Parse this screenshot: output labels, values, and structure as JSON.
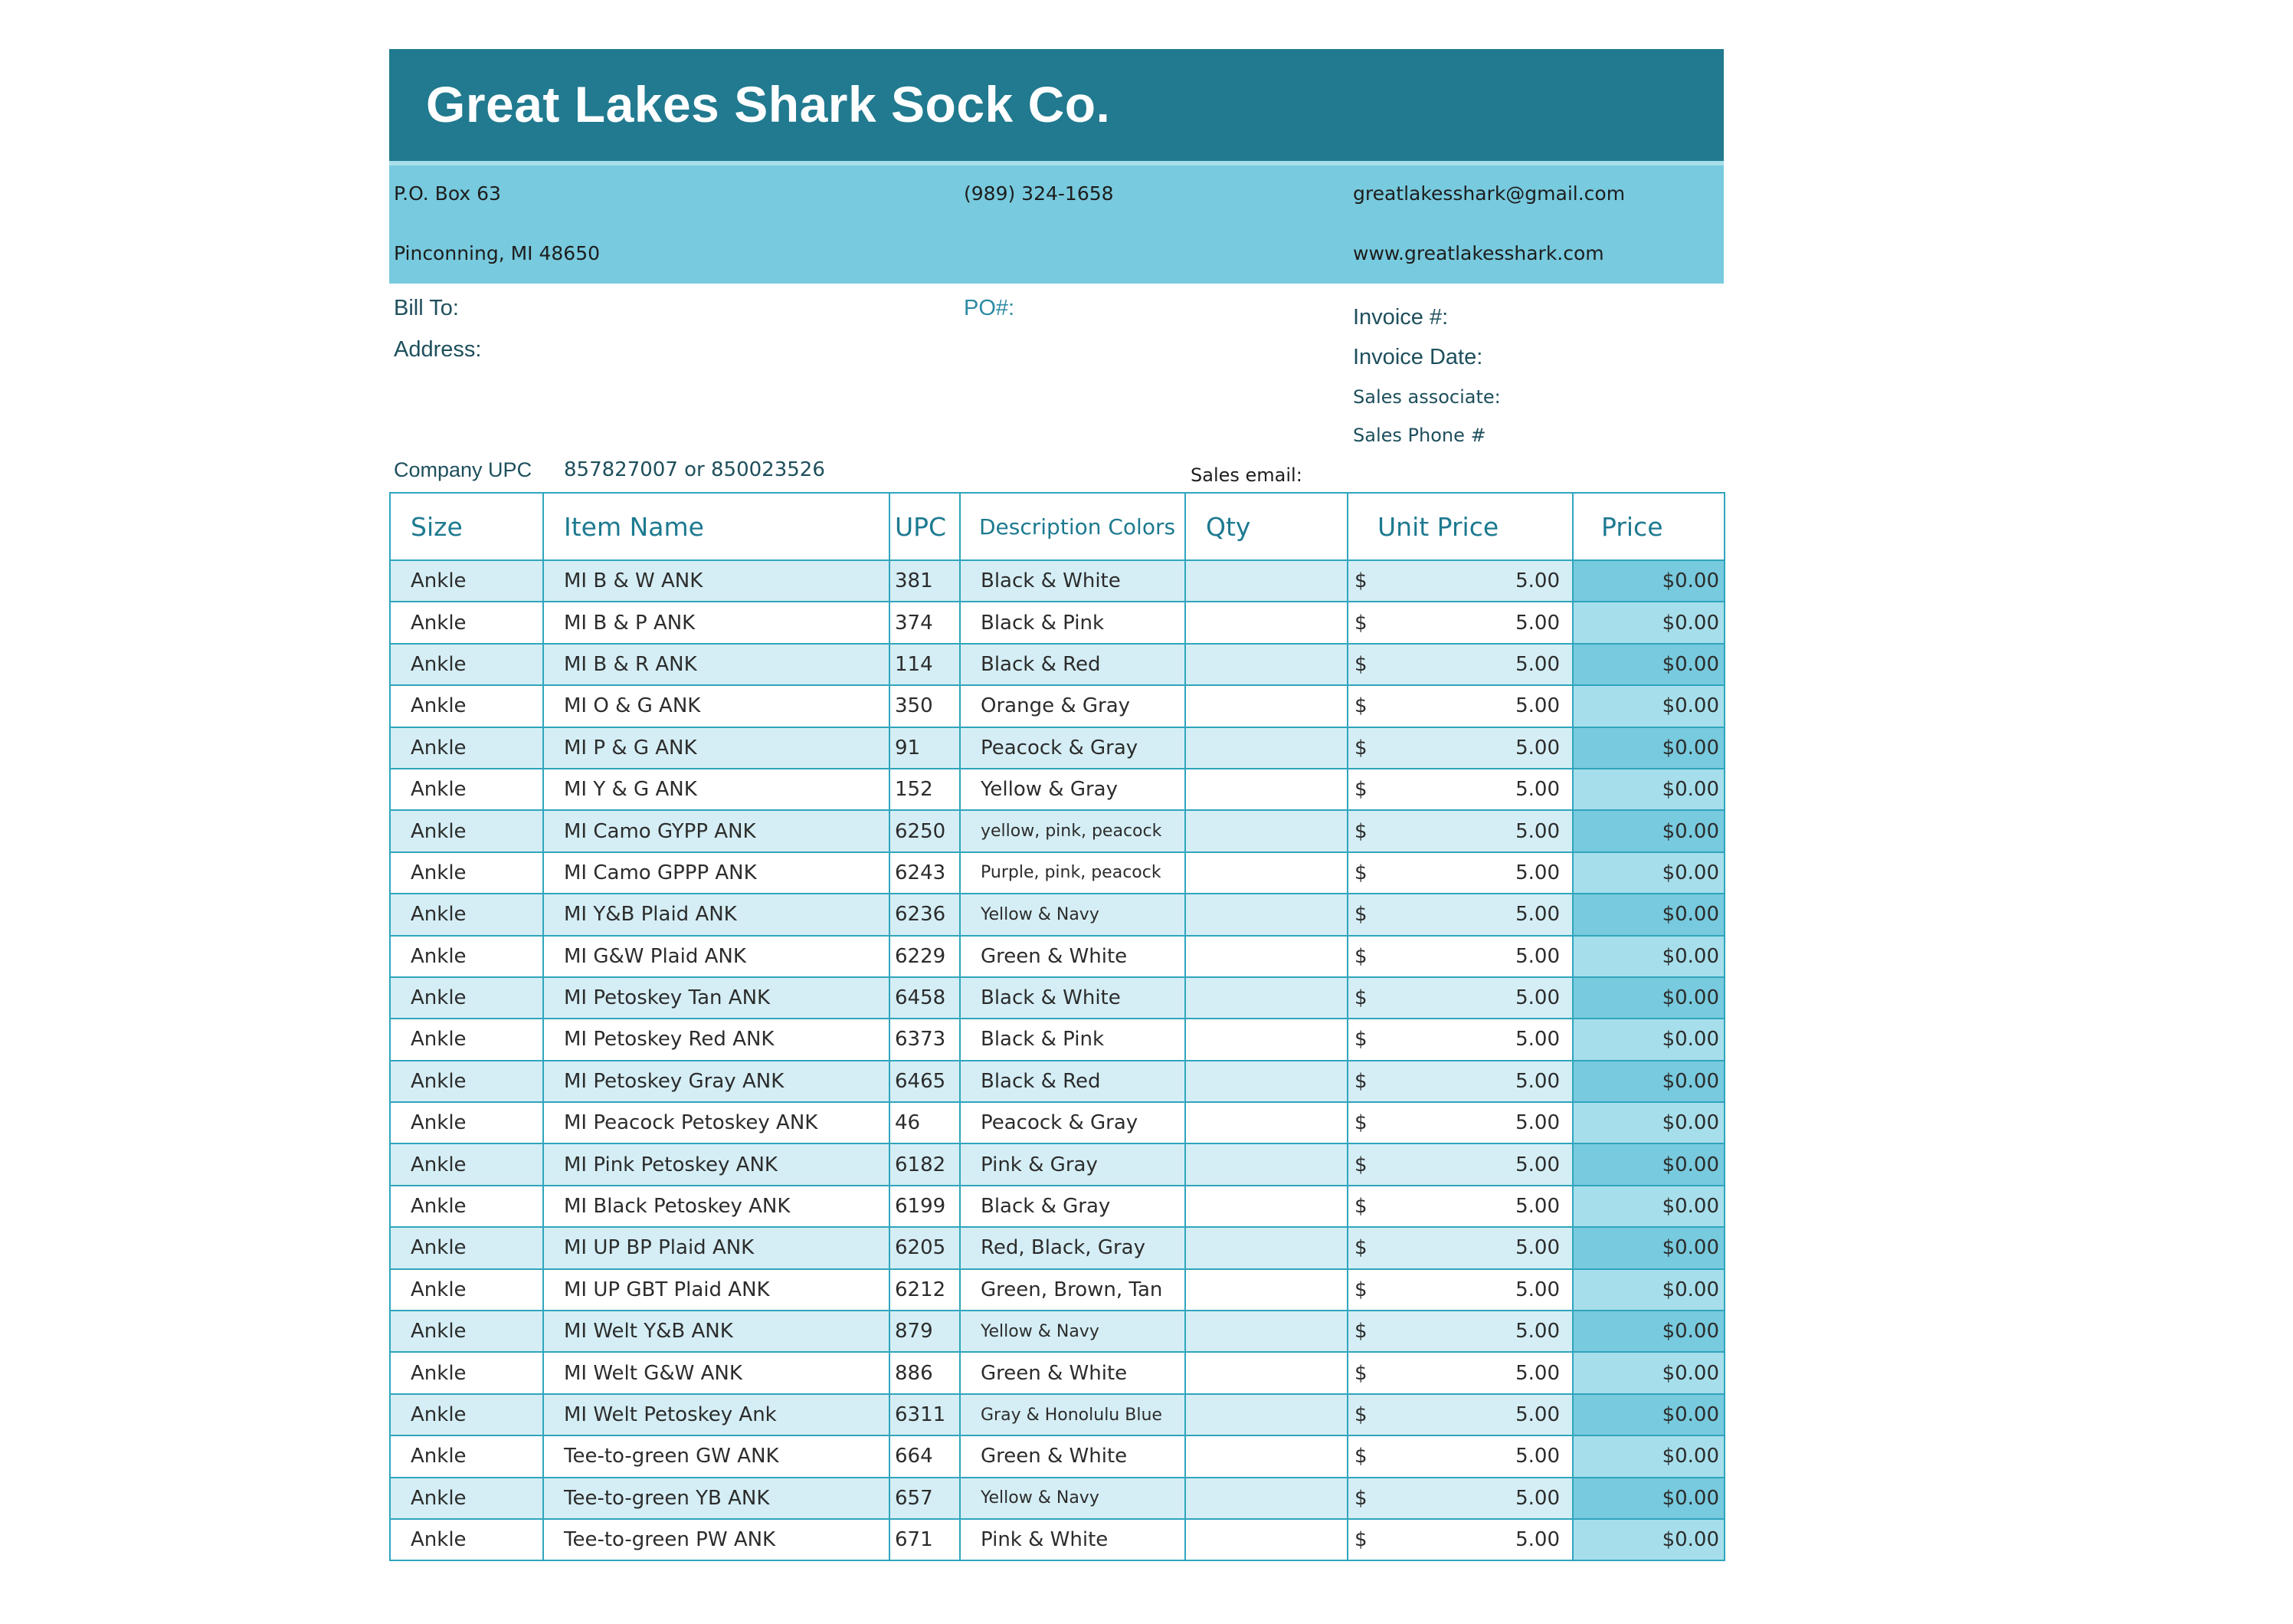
{
  "company": {
    "name": "Great Lakes Shark Sock Co.",
    "po_box": "P.O. Box 63",
    "city_state_zip": "Pinconning, MI 48650",
    "phone": "(989) 324-1658",
    "email": "greatlakesshark@gmail.com",
    "website": "www.greatlakesshark.com"
  },
  "fields": {
    "bill_to": "Bill To:",
    "address": "Address:",
    "po_number": "PO#:",
    "invoice_number": "Invoice #:",
    "invoice_date": "Invoice Date:",
    "sales_associate": "Sales associate:",
    "sales_phone": "Sales Phone #",
    "company_upc_label": "Company UPC",
    "company_upc_value": "857827007 or 850023526",
    "sales_email": "Sales email:"
  },
  "table": {
    "headers": {
      "size": "Size",
      "item_name": "Item Name",
      "upc": "UPC",
      "description": "Description Colors",
      "qty": "Qty",
      "unit_price": "Unit Price",
      "price": "Price"
    },
    "currency_symbol": "$",
    "rows": [
      {
        "size": "Ankle",
        "item": "MI B & W ANK",
        "upc": "381",
        "desc": "Black & White",
        "unit": "5.00",
        "price": "$0.00"
      },
      {
        "size": "Ankle",
        "item": "MI B & P ANK",
        "upc": "374",
        "desc": "Black & Pink",
        "unit": "5.00",
        "price": "$0.00"
      },
      {
        "size": "Ankle",
        "item": "MI B & R ANK",
        "upc": "114",
        "desc": "Black & Red",
        "unit": "5.00",
        "price": "$0.00"
      },
      {
        "size": "Ankle",
        "item": "MI O & G ANK",
        "upc": "350",
        "desc": "Orange & Gray",
        "unit": "5.00",
        "price": "$0.00"
      },
      {
        "size": "Ankle",
        "item": "MI P & G ANK",
        "upc": "91",
        "desc": "Peacock & Gray",
        "unit": "5.00",
        "price": "$0.00"
      },
      {
        "size": "Ankle",
        "item": "MI Y & G ANK",
        "upc": "152",
        "desc": "Yellow & Gray",
        "unit": "5.00",
        "price": "$0.00"
      },
      {
        "size": "Ankle",
        "item": "MI Camo GYPP ANK",
        "upc": "6250",
        "desc": "yellow, pink, peacock",
        "unit": "5.00",
        "price": "$0.00"
      },
      {
        "size": "Ankle",
        "item": "MI Camo GPPP ANK",
        "upc": "6243",
        "desc": " Purple, pink, peacock",
        "unit": "5.00",
        "price": "$0.00"
      },
      {
        "size": "Ankle",
        "item": "MI Y&B Plaid ANK",
        "upc": "6236",
        "desc": "Yellow & Navy",
        "unit": "5.00",
        "price": "$0.00"
      },
      {
        "size": "Ankle",
        "item": "MI G&W Plaid ANK",
        "upc": "6229",
        "desc": "Green & White",
        "unit": "5.00",
        "price": "$0.00"
      },
      {
        "size": "Ankle",
        "item": "MI Petoskey Tan ANK",
        "upc": "6458",
        "desc": "Black & White",
        "unit": "5.00",
        "price": "$0.00"
      },
      {
        "size": "Ankle",
        "item": "MI Petoskey Red ANK",
        "upc": "6373",
        "desc": "Black & Pink",
        "unit": "5.00",
        "price": "$0.00"
      },
      {
        "size": "Ankle",
        "item": "MI Petoskey Gray ANK",
        "upc": "6465",
        "desc": "Black & Red",
        "unit": "5.00",
        "price": "$0.00"
      },
      {
        "size": "Ankle",
        "item": "MI Peacock Petoskey ANK",
        "upc": "46",
        "desc": "Peacock & Gray",
        "unit": "5.00",
        "price": "$0.00"
      },
      {
        "size": "Ankle",
        "item": "MI Pink Petoskey ANK",
        "upc": "6182",
        "desc": "Pink & Gray",
        "unit": "5.00",
        "price": "$0.00"
      },
      {
        "size": "Ankle",
        "item": "MI Black Petoskey ANK",
        "upc": "6199",
        "desc": "Black & Gray",
        "unit": "5.00",
        "price": "$0.00"
      },
      {
        "size": "Ankle",
        "item": "MI UP BP Plaid ANK",
        "upc": "6205",
        "desc": "Red, Black, Gray",
        "unit": "5.00",
        "price": "$0.00"
      },
      {
        "size": "Ankle",
        "item": "MI UP GBT Plaid ANK",
        "upc": "6212",
        "desc": "Green, Brown, Tan",
        "unit": "5.00",
        "price": "$0.00"
      },
      {
        "size": "Ankle",
        "item": "MI Welt Y&B ANK",
        "upc": "879",
        "desc": "Yellow & Navy",
        "unit": "5.00",
        "price": "$0.00"
      },
      {
        "size": "Ankle",
        "item": "MI Welt G&W ANK",
        "upc": "886",
        "desc": "Green & White",
        "unit": "5.00",
        "price": "$0.00"
      },
      {
        "size": "Ankle",
        "item": "MI Welt Petoskey Ank",
        "upc": "6311",
        "desc": "Gray & Honolulu Blue",
        "unit": "5.00",
        "price": "$0.00"
      },
      {
        "size": "Ankle",
        "item": "Tee-to-green GW ANK",
        "upc": "664",
        "desc": "Green & White",
        "unit": "5.00",
        "price": "$0.00"
      },
      {
        "size": "Ankle",
        "item": "Tee-to-green YB ANK",
        "upc": "657",
        "desc": "Yellow & Navy",
        "unit": "5.00",
        "price": "$0.00"
      },
      {
        "size": "Ankle",
        "item": "Tee-to-green PW ANK",
        "upc": "671",
        "desc": "Pink & White",
        "unit": "5.00",
        "price": "$0.00"
      }
    ]
  },
  "colors": {
    "banner": "#217a8f",
    "contact_band": "#78cade",
    "row_band": "#d5eef5",
    "grid_line": "#2fa5bd",
    "header_text": "#1d7a90"
  }
}
